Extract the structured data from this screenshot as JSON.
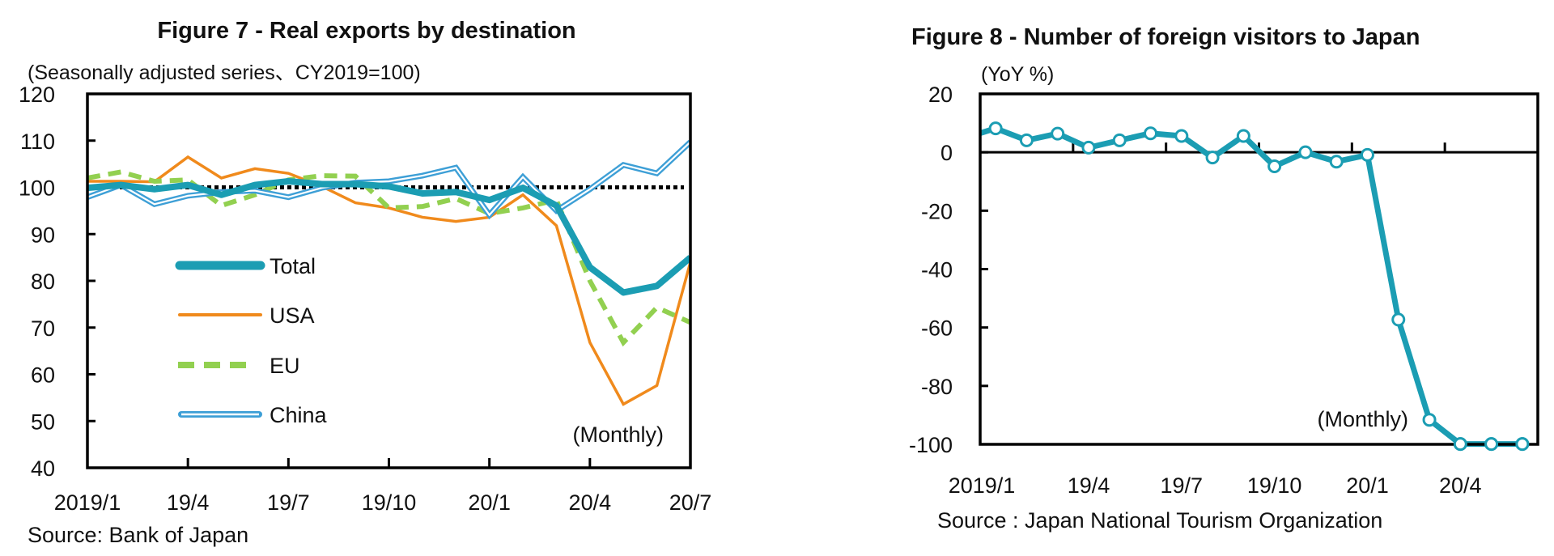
{
  "chart_data": [
    {
      "type": "line",
      "title": "Figure 7 - Real exports by destination",
      "subtitle": "(Seasonally adjusted series、CY2019=100)",
      "note": "(Monthly)",
      "source": "Source: Bank of Japan",
      "x": [
        "2019/1",
        "2019/2",
        "2019/3",
        "2019/4",
        "2019/5",
        "2019/6",
        "2019/7",
        "2019/8",
        "2019/9",
        "2019/10",
        "2019/11",
        "2019/12",
        "2020/1",
        "2020/2",
        "2020/3",
        "2020/4",
        "2020/5",
        "2020/6",
        "2020/7"
      ],
      "x_tick_labels": [
        "2019/1",
        "19/4",
        "19/7",
        "19/10",
        "20/1",
        "20/4",
        "20/7"
      ],
      "y_tick_labels": [
        "120",
        "110",
        "100",
        "90",
        "80",
        "70",
        "60",
        "50",
        "40"
      ],
      "ylim": [
        40,
        120
      ],
      "reference_line": 100,
      "legend_placement": "center-left",
      "series": [
        {
          "name": "Total",
          "color": "#1b9db3",
          "style": "thick",
          "values": [
            99.9,
            100.5,
            99.6,
            100.5,
            98.4,
            100.5,
            101.3,
            100.7,
            100.7,
            100.2,
            98.7,
            99.0,
            97.3,
            99.9,
            96.1,
            82.9,
            77.5,
            78.9,
            85.0
          ]
        },
        {
          "name": "USA",
          "color": "#f08a1c",
          "style": "solid",
          "values": [
            101.3,
            101.3,
            101.2,
            106.5,
            102.0,
            104.0,
            103.0,
            100.2,
            96.7,
            95.6,
            93.6,
            92.7,
            93.6,
            98.4,
            91.8,
            66.8,
            53.6,
            57.6,
            84.0
          ]
        },
        {
          "name": "EU",
          "color": "#92d050",
          "style": "dashed",
          "values": [
            102.0,
            103.3,
            101.3,
            101.6,
            96.1,
            98.4,
            101.6,
            102.5,
            102.4,
            95.6,
            95.9,
            97.6,
            94.4,
            95.6,
            97.3,
            80.0,
            66.8,
            74.3,
            71.1
          ]
        },
        {
          "name": "China",
          "color": "#3d9fd6",
          "style": "double",
          "values": [
            97.9,
            100.5,
            96.4,
            98.2,
            99.0,
            99.3,
            97.9,
            99.9,
            101.0,
            101.3,
            102.5,
            104.2,
            94.1,
            102.2,
            95.0,
            99.6,
            104.8,
            103.0,
            109.7
          ]
        }
      ]
    },
    {
      "type": "line",
      "title": "Figure 8 - Number of foreign visitors to Japan",
      "ylabel": "(YoY %)",
      "note": "(Monthly)",
      "source": "Source : Japan National Tourism Organization",
      "x": [
        "2018/12",
        "2019/1",
        "2019/2",
        "2019/3",
        "2019/4",
        "2019/5",
        "2019/6",
        "2019/7",
        "2019/8",
        "2019/9",
        "2019/10",
        "2019/11",
        "2019/12",
        "2020/1",
        "2020/2",
        "2020/3",
        "2020/4",
        "2020/5",
        "2020/6"
      ],
      "x_tick_labels": [
        "2019/1",
        "19/4",
        "19/7",
        "19/10",
        "20/1",
        "20/4"
      ],
      "y_tick_labels": [
        "20",
        "0",
        "-20",
        "-40",
        "-60",
        "-80",
        "-100"
      ],
      "ylim": [
        -100,
        20
      ],
      "series": [
        {
          "color": "#1b9db3",
          "marker": "open-circle",
          "values": [
            4.9,
            8.2,
            4.1,
            6.4,
            1.6,
            4.1,
            6.5,
            5.6,
            -1.8,
            5.6,
            -4.8,
            0.0,
            -3.2,
            -0.9,
            -57.3,
            -91.6,
            -99.9,
            -99.9,
            -99.9
          ]
        }
      ]
    }
  ]
}
